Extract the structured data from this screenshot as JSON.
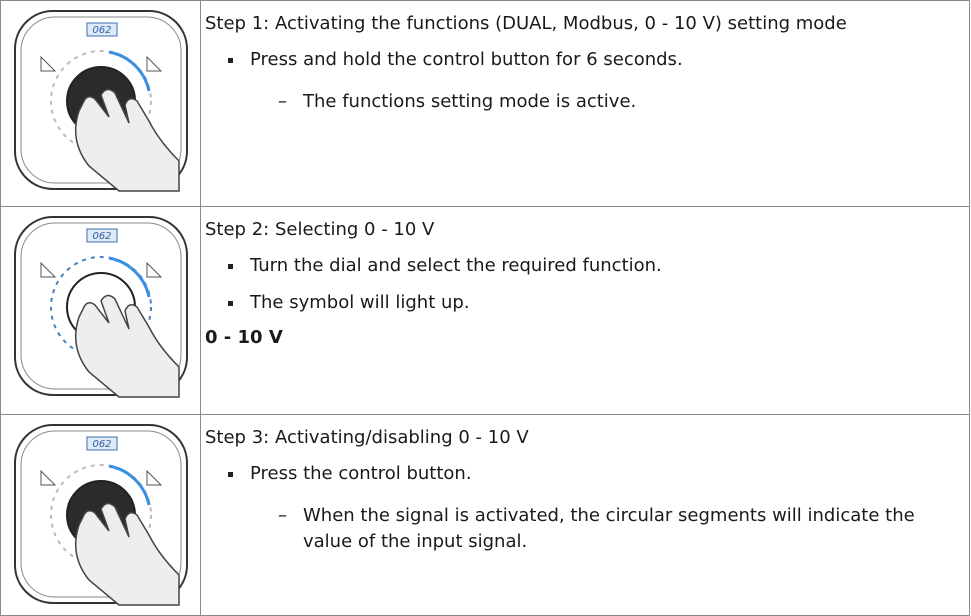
{
  "steps": [
    {
      "display": "062",
      "title": "Step 1: Activating the functions (DUAL, Modbus, 0 - 10 V) setting mode",
      "items": [
        {
          "text": "Press and hold the control button for 6 seconds.",
          "subitems": [
            "The functions setting mode is active."
          ]
        }
      ]
    },
    {
      "display": "062",
      "title": "Step 2: Selecting 0 - 10 V",
      "items": [
        {
          "text": "Turn the dial and select the required function."
        },
        {
          "text": "The symbol will light up."
        }
      ],
      "note": "0 - 10 V"
    },
    {
      "display": "062",
      "title": "Step 3: Activating/disabling 0 - 10 V",
      "items": [
        {
          "text": "Press the control button.",
          "subitems": [
            "When the signal is activated, the circular segments will indicate the value of the input signal."
          ]
        }
      ]
    }
  ]
}
